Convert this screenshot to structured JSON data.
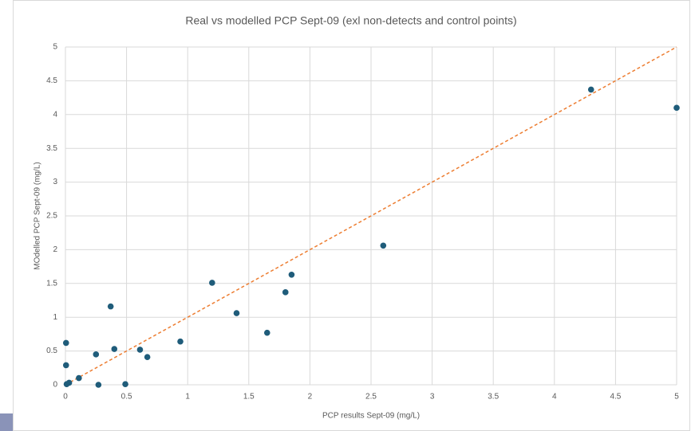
{
  "chart_data": {
    "type": "scatter",
    "title": "Real vs modelled PCP Sept-09 (exl non-detects and control points)",
    "x_label": "PCP results Sept-09 (mg/L)",
    "y_label": "MOdelled PCP Sept-09 (mg/L)",
    "x": [
      0.005,
      0.005,
      0.01,
      0.03,
      0.11,
      0.25,
      0.27,
      0.37,
      0.4,
      0.49,
      0.61,
      0.67,
      0.94,
      1.2,
      1.4,
      1.65,
      1.8,
      1.85,
      2.6,
      4.3,
      5.0
    ],
    "y": [
      0.62,
      0.29,
      0.01,
      0.03,
      0.1,
      0.45,
      0.0,
      1.16,
      0.53,
      0.01,
      0.52,
      0.41,
      0.64,
      1.51,
      1.06,
      0.77,
      1.37,
      1.63,
      2.06,
      4.37,
      4.1
    ],
    "color": "#1f5c7a",
    "trendline": {
      "x": [
        0,
        5
      ],
      "y": [
        0,
        5
      ],
      "color": "#ed7d31",
      "dashed": true
    },
    "xlim": [
      0,
      5
    ],
    "ylim": [
      0,
      5
    ],
    "xticks": [
      0,
      0.5,
      1,
      1.5,
      2,
      2.5,
      3,
      3.5,
      4,
      4.5,
      5
    ],
    "yticks": [
      0,
      0.5,
      1,
      1.5,
      2,
      2.5,
      3,
      3.5,
      4,
      4.5,
      5
    ],
    "grid": true
  }
}
